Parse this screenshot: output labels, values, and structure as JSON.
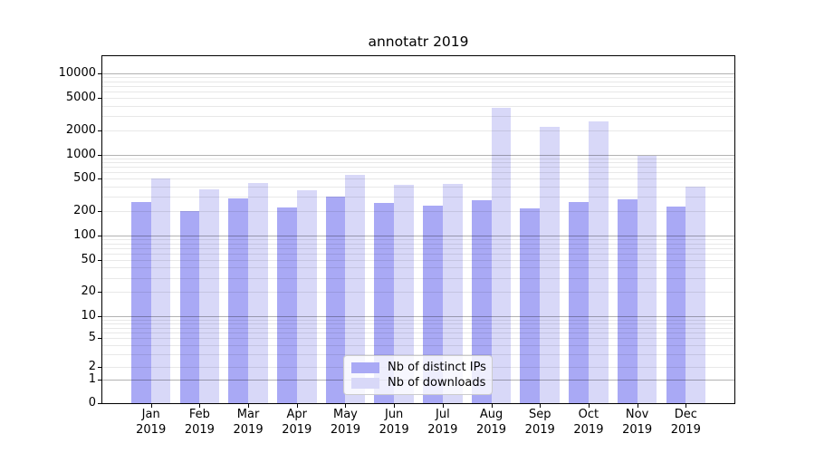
{
  "chart_data": {
    "type": "bar",
    "title": "annotatr 2019",
    "scale": "symlog",
    "grid": true,
    "legend_position": "lower center",
    "categories": [
      "Jan 2019",
      "Feb 2019",
      "Mar 2019",
      "Apr 2019",
      "May 2019",
      "Jun 2019",
      "Jul 2019",
      "Aug 2019",
      "Sep 2019",
      "Oct 2019",
      "Nov 2019",
      "Dec 2019"
    ],
    "series": [
      {
        "name": "Nb of distinct IPs",
        "color": "#a9a9f5",
        "values": [
          257,
          199,
          285,
          222,
          300,
          255,
          232,
          272,
          218,
          257,
          278,
          230
        ]
      },
      {
        "name": "Nb of downloads",
        "color": "#d8d8f8",
        "values": [
          505,
          370,
          440,
          363,
          555,
          425,
          434,
          3800,
          2200,
          2580,
          960,
          396
        ]
      }
    ],
    "y_ticks": [
      0,
      1,
      2,
      5,
      10,
      20,
      50,
      100,
      200,
      500,
      1000,
      2000,
      5000,
      10000
    ],
    "ylim": [
      0,
      16000
    ],
    "xlabel": "",
    "ylabel": ""
  }
}
